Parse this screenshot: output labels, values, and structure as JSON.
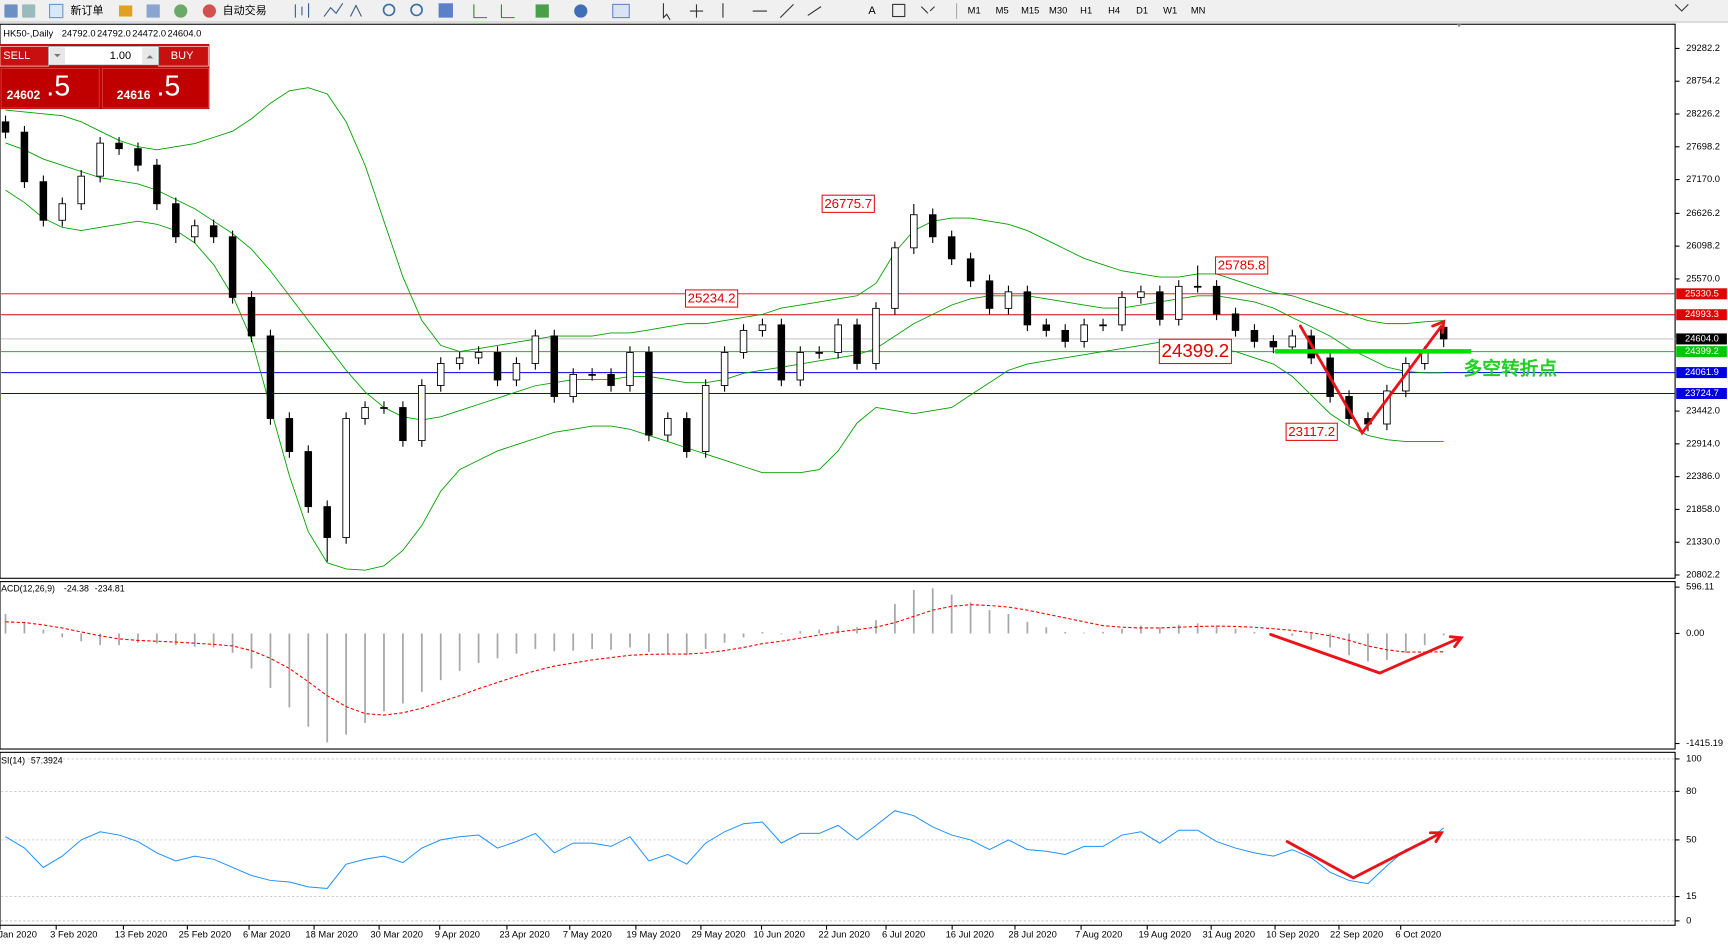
{
  "toolbar": {
    "new_order": "新订单",
    "auto_trade": "自动交易",
    "timeframes": [
      "M1",
      "M5",
      "M15",
      "M30",
      "H1",
      "H4",
      "D1",
      "W1",
      "MN"
    ]
  },
  "trade_panel": {
    "sell": "SELL",
    "buy": "BUY",
    "lots": "1.00",
    "bid_main": "24602",
    "bid_frac": ".5",
    "ask_main": "24616",
    "ask_frac": ".5"
  },
  "chart_data": {
    "type": "candlestick",
    "symbol": "HK50-,Daily",
    "ohlc_text": [
      "24792.0",
      "24792.0",
      "24472.0",
      "24604.0"
    ],
    "up_color": "#ffffff",
    "down_color": "#000000",
    "open": [
      28100,
      27934,
      27136,
      26515,
      26781,
      27225,
      27757,
      27668,
      27402,
      26781,
      26249,
      26426,
      26249,
      25273,
      24652,
      23322,
      22790,
      21903,
      21406,
      23322,
      23499,
      23499,
      22967,
      23854,
      24209,
      24298,
      24386,
      23943,
      24209,
      24652,
      23677,
      24032,
      24032,
      23854,
      24386,
      23056,
      23322,
      22790,
      23854,
      24386,
      24741,
      24830,
      23943,
      24386,
      24386,
      24830,
      24209,
      25096,
      26071,
      26604,
      26249,
      25894,
      25539,
      25096,
      25362,
      24830,
      24741,
      24564,
      24830,
      24830,
      25273,
      25362,
      24919,
      25451,
      25451,
      25007,
      24741,
      24564,
      24475,
      24652,
      24298,
      23677,
      23322,
      23234,
      23766,
      24209,
      24792
    ],
    "high": [
      28200,
      28034,
      27236,
      26881,
      27325,
      27857,
      27857,
      27768,
      27502,
      26881,
      26526,
      26526,
      26349,
      25373,
      24752,
      23422,
      22890,
      22003,
      23422,
      23599,
      23599,
      23599,
      23954,
      24309,
      24398,
      24486,
      24486,
      24309,
      24752,
      24752,
      24132,
      24132,
      24132,
      24486,
      24486,
      23422,
      23422,
      23954,
      24486,
      24841,
      24930,
      24930,
      24486,
      24486,
      24930,
      24930,
      25196,
      26171,
      26776,
      26704,
      26349,
      25994,
      25639,
      25462,
      25462,
      24930,
      24841,
      24930,
      24930,
      25373,
      25462,
      25462,
      25551,
      25786,
      25551,
      25107,
      24841,
      24664,
      24752,
      24752,
      24398,
      23777,
      23422,
      23866,
      24309,
      24486,
      24792
    ],
    "low": [
      27834,
      27036,
      26415,
      26415,
      26681,
      27125,
      27568,
      27302,
      26681,
      26149,
      26149,
      26149,
      25173,
      24552,
      23222,
      22690,
      21803,
      21016,
      21306,
      23222,
      23399,
      22867,
      22867,
      23754,
      24109,
      24198,
      23843,
      23843,
      24109,
      23577,
      23577,
      23932,
      23754,
      23754,
      22956,
      22956,
      22690,
      22690,
      23754,
      24286,
      24641,
      23843,
      23843,
      24286,
      24286,
      24109,
      24109,
      24996,
      25971,
      26149,
      25794,
      25439,
      24996,
      24996,
      24730,
      24641,
      24464,
      24464,
      24730,
      24730,
      25173,
      24819,
      24819,
      25351,
      24907,
      24641,
      24464,
      24375,
      24375,
      24198,
      23577,
      23222,
      23117,
      23134,
      23666,
      24109,
      24472
    ],
    "close": [
      27934,
      27136,
      26515,
      26781,
      27225,
      27757,
      27668,
      27402,
      26781,
      26249,
      26426,
      26249,
      25273,
      24652,
      23322,
      22790,
      21903,
      21406,
      23322,
      23499,
      23499,
      22967,
      23854,
      24209,
      24298,
      24386,
      23943,
      24209,
      24652,
      23677,
      24032,
      24032,
      23854,
      24386,
      23056,
      23322,
      22790,
      23854,
      24386,
      24741,
      24830,
      23943,
      24386,
      24386,
      24830,
      24209,
      25096,
      26071,
      26604,
      26249,
      25894,
      25539,
      25096,
      25362,
      24830,
      24741,
      24564,
      24830,
      24830,
      25273,
      25362,
      24919,
      25451,
      25451,
      25007,
      24741,
      24564,
      24475,
      24652,
      24298,
      23677,
      23322,
      23234,
      23766,
      24209,
      24386,
      24604
    ],
    "bands": {
      "color": "#00a000",
      "upper": [
        28290,
        28260,
        28230,
        28200,
        28100,
        27950,
        27800,
        27700,
        27650,
        27700,
        27750,
        27850,
        27950,
        28150,
        28400,
        28600,
        28650,
        28550,
        28100,
        27400,
        26500,
        25600,
        24900,
        24500,
        24400,
        24450,
        24500,
        24550,
        24600,
        24650,
        24650,
        24650,
        24700,
        24700,
        24750,
        24800,
        24850,
        24850,
        24900,
        24950,
        25000,
        25100,
        25150,
        25200,
        25250,
        25300,
        25500,
        26000,
        26350,
        26500,
        26550,
        26550,
        26500,
        26450,
        26350,
        26200,
        26050,
        25900,
        25800,
        25700,
        25650,
        25600,
        25600,
        25650,
        25650,
        25550,
        25450,
        25350,
        25300,
        25200,
        25100,
        25000,
        24900,
        24850,
        24850,
        24880,
        24900
      ],
      "middle": [
        27760,
        27650,
        27500,
        27400,
        27300,
        27200,
        27150,
        27100,
        27000,
        26850,
        26700,
        26500,
        26300,
        26050,
        25700,
        25300,
        24900,
        24500,
        24100,
        23750,
        23500,
        23350,
        23300,
        23350,
        23450,
        23550,
        23650,
        23750,
        23850,
        23900,
        23950,
        23950,
        23950,
        24000,
        24000,
        23950,
        23900,
        23900,
        23950,
        24050,
        24100,
        24150,
        24200,
        24250,
        24300,
        24350,
        24450,
        24650,
        24850,
        25000,
        25150,
        25250,
        25300,
        25300,
        25300,
        25250,
        25200,
        25150,
        25100,
        25100,
        25150,
        25200,
        25250,
        25300,
        25300,
        25250,
        25200,
        25100,
        24950,
        24800,
        24650,
        24450,
        24300,
        24150,
        24080,
        24060,
        24060
      ],
      "lower": [
        27000,
        26800,
        26550,
        26400,
        26350,
        26400,
        26450,
        26500,
        26450,
        26350,
        26150,
        25800,
        25300,
        24600,
        23500,
        22400,
        21500,
        21000,
        20900,
        20880,
        20950,
        21200,
        21600,
        22150,
        22500,
        22650,
        22800,
        22900,
        23000,
        23100,
        23150,
        23200,
        23200,
        23150,
        23050,
        22950,
        22850,
        22750,
        22650,
        22550,
        22450,
        22450,
        22450,
        22500,
        22800,
        23250,
        23500,
        23450,
        23400,
        23450,
        23500,
        23700,
        23900,
        24100,
        24200,
        24250,
        24300,
        24350,
        24400,
        24450,
        24500,
        24550,
        24550,
        24500,
        24450,
        24400,
        24300,
        24200,
        24000,
        23700,
        23400,
        23200,
        23050,
        22980,
        22950,
        22950,
        22950
      ]
    },
    "ylim": [
      20749,
      29672
    ],
    "yticks": [
      29282.2,
      28754.2,
      28226.2,
      27698.2,
      {
        "value": 27170,
        "label": "27170.0"
      },
      26626.2,
      26098.2,
      {
        "value": 25570,
        "label": "25570.0"
      },
      {
        "value": 23442,
        "label": "23442.0"
      },
      {
        "value": 22914,
        "label": "22914.0"
      },
      {
        "value": 22386,
        "label": "22386.0"
      },
      {
        "value": 21858,
        "label": "21858.0"
      },
      {
        "value": 21330,
        "label": "21330.0"
      },
      20802.2
    ],
    "levels": [
      {
        "value": 25330.5,
        "color": "#e00000"
      },
      {
        "value": 24993.3,
        "color": "#e00000"
      },
      {
        "value": 24604,
        "label": "24604.0",
        "color": "#000000"
      },
      {
        "value": 24399.2,
        "color": "#00c800"
      },
      {
        "value": 24061.9,
        "color": "#0000e0"
      },
      {
        "value": 23724.7,
        "color": "#0000e0"
      }
    ],
    "annotations": [
      26775.7,
      25234.2,
      25785.8,
      24399.2,
      23117.2
    ],
    "note": {
      "text": "多空转折点",
      "color": "#22d022"
    },
    "x_labels": [
      "Jan 2020",
      "3 Feb 2020",
      "13 Feb 2020",
      "25 Feb 2020",
      "6 Mar 2020",
      "18 Mar 2020",
      "30 Mar 2020",
      "9 Apr 2020",
      "23 Apr 2020",
      "7 May 2020",
      "19 May 2020",
      "29 May 2020",
      "10 Jun 2020",
      "22 Jun 2020",
      "6 Jul 2020",
      "16 Jul 2020",
      "28 Jul 2020",
      "7 Aug 2020",
      "19 Aug 2020",
      "31 Aug 2020",
      "10 Sep 2020",
      "22 Sep 2020",
      "6 Oct 2020"
    ],
    "macd": {
      "label": "ACD(12,26,9)",
      "hist_color": "#a8a8a8",
      "signal_color": "#ff0000",
      "hist": [
        250,
        150,
        50,
        -50,
        -100,
        -150,
        -150,
        -120,
        -130,
        -150,
        -170,
        -180,
        -250,
        -450,
        -700,
        -950,
        -1200,
        -1400,
        -1300,
        -1150,
        -1000,
        -900,
        -750,
        -600,
        -480,
        -380,
        -320,
        -260,
        -200,
        -230,
        -220,
        -200,
        -210,
        -180,
        -240,
        -260,
        -280,
        -200,
        -120,
        -50,
        20,
        -10,
        30,
        50,
        100,
        80,
        170,
        380,
        560,
        580,
        500,
        400,
        300,
        250,
        150,
        80,
        20,
        10,
        20,
        60,
        100,
        80,
        110,
        130,
        100,
        60,
        20,
        -20,
        -30,
        -80,
        -180,
        -280,
        -360,
        -340,
        -250,
        -150,
        -24.38
      ],
      "signal": [
        150,
        140,
        110,
        70,
        20,
        -30,
        -70,
        -90,
        -100,
        -110,
        -125,
        -140,
        -160,
        -220,
        -320,
        -450,
        -620,
        -800,
        -940,
        -1030,
        -1050,
        -1020,
        -960,
        -880,
        -800,
        -710,
        -630,
        -550,
        -480,
        -420,
        -380,
        -340,
        -310,
        -280,
        -270,
        -265,
        -265,
        -250,
        -220,
        -180,
        -130,
        -100,
        -60,
        -20,
        20,
        50,
        80,
        140,
        220,
        300,
        350,
        370,
        360,
        340,
        300,
        250,
        200,
        150,
        100,
        80,
        70,
        70,
        80,
        90,
        95,
        90,
        80,
        60,
        40,
        10,
        -30,
        -90,
        -160,
        -210,
        -240,
        -240,
        -234.81
      ],
      "ylim": [
        -1415.19,
        596.11
      ],
      "yticks": [
        596.11,
        {
          "value": 0,
          "label": "0.00"
        },
        -1415.19
      ]
    },
    "rsi": {
      "label": "SI(14)",
      "color": "#1e90ff",
      "values": [
        52,
        45,
        33,
        40,
        50,
        55,
        53,
        49,
        42,
        37,
        40,
        38,
        33,
        28,
        25,
        24,
        21,
        20,
        35,
        38,
        40,
        36,
        45,
        50,
        52,
        53,
        45,
        49,
        54,
        42,
        48,
        48,
        46,
        52,
        37,
        41,
        35,
        48,
        55,
        60,
        61,
        48,
        54,
        54,
        59,
        50,
        59,
        68,
        65,
        58,
        53,
        50,
        44,
        50,
        44,
        43,
        41,
        46,
        46,
        53,
        55,
        48,
        56,
        56,
        49,
        45,
        42,
        40,
        44,
        39,
        30,
        25,
        23,
        34,
        44,
        48,
        57.3924
      ],
      "ylim": [
        0,
        100
      ],
      "yticks": [
        100,
        80,
        50,
        15,
        0
      ]
    }
  }
}
